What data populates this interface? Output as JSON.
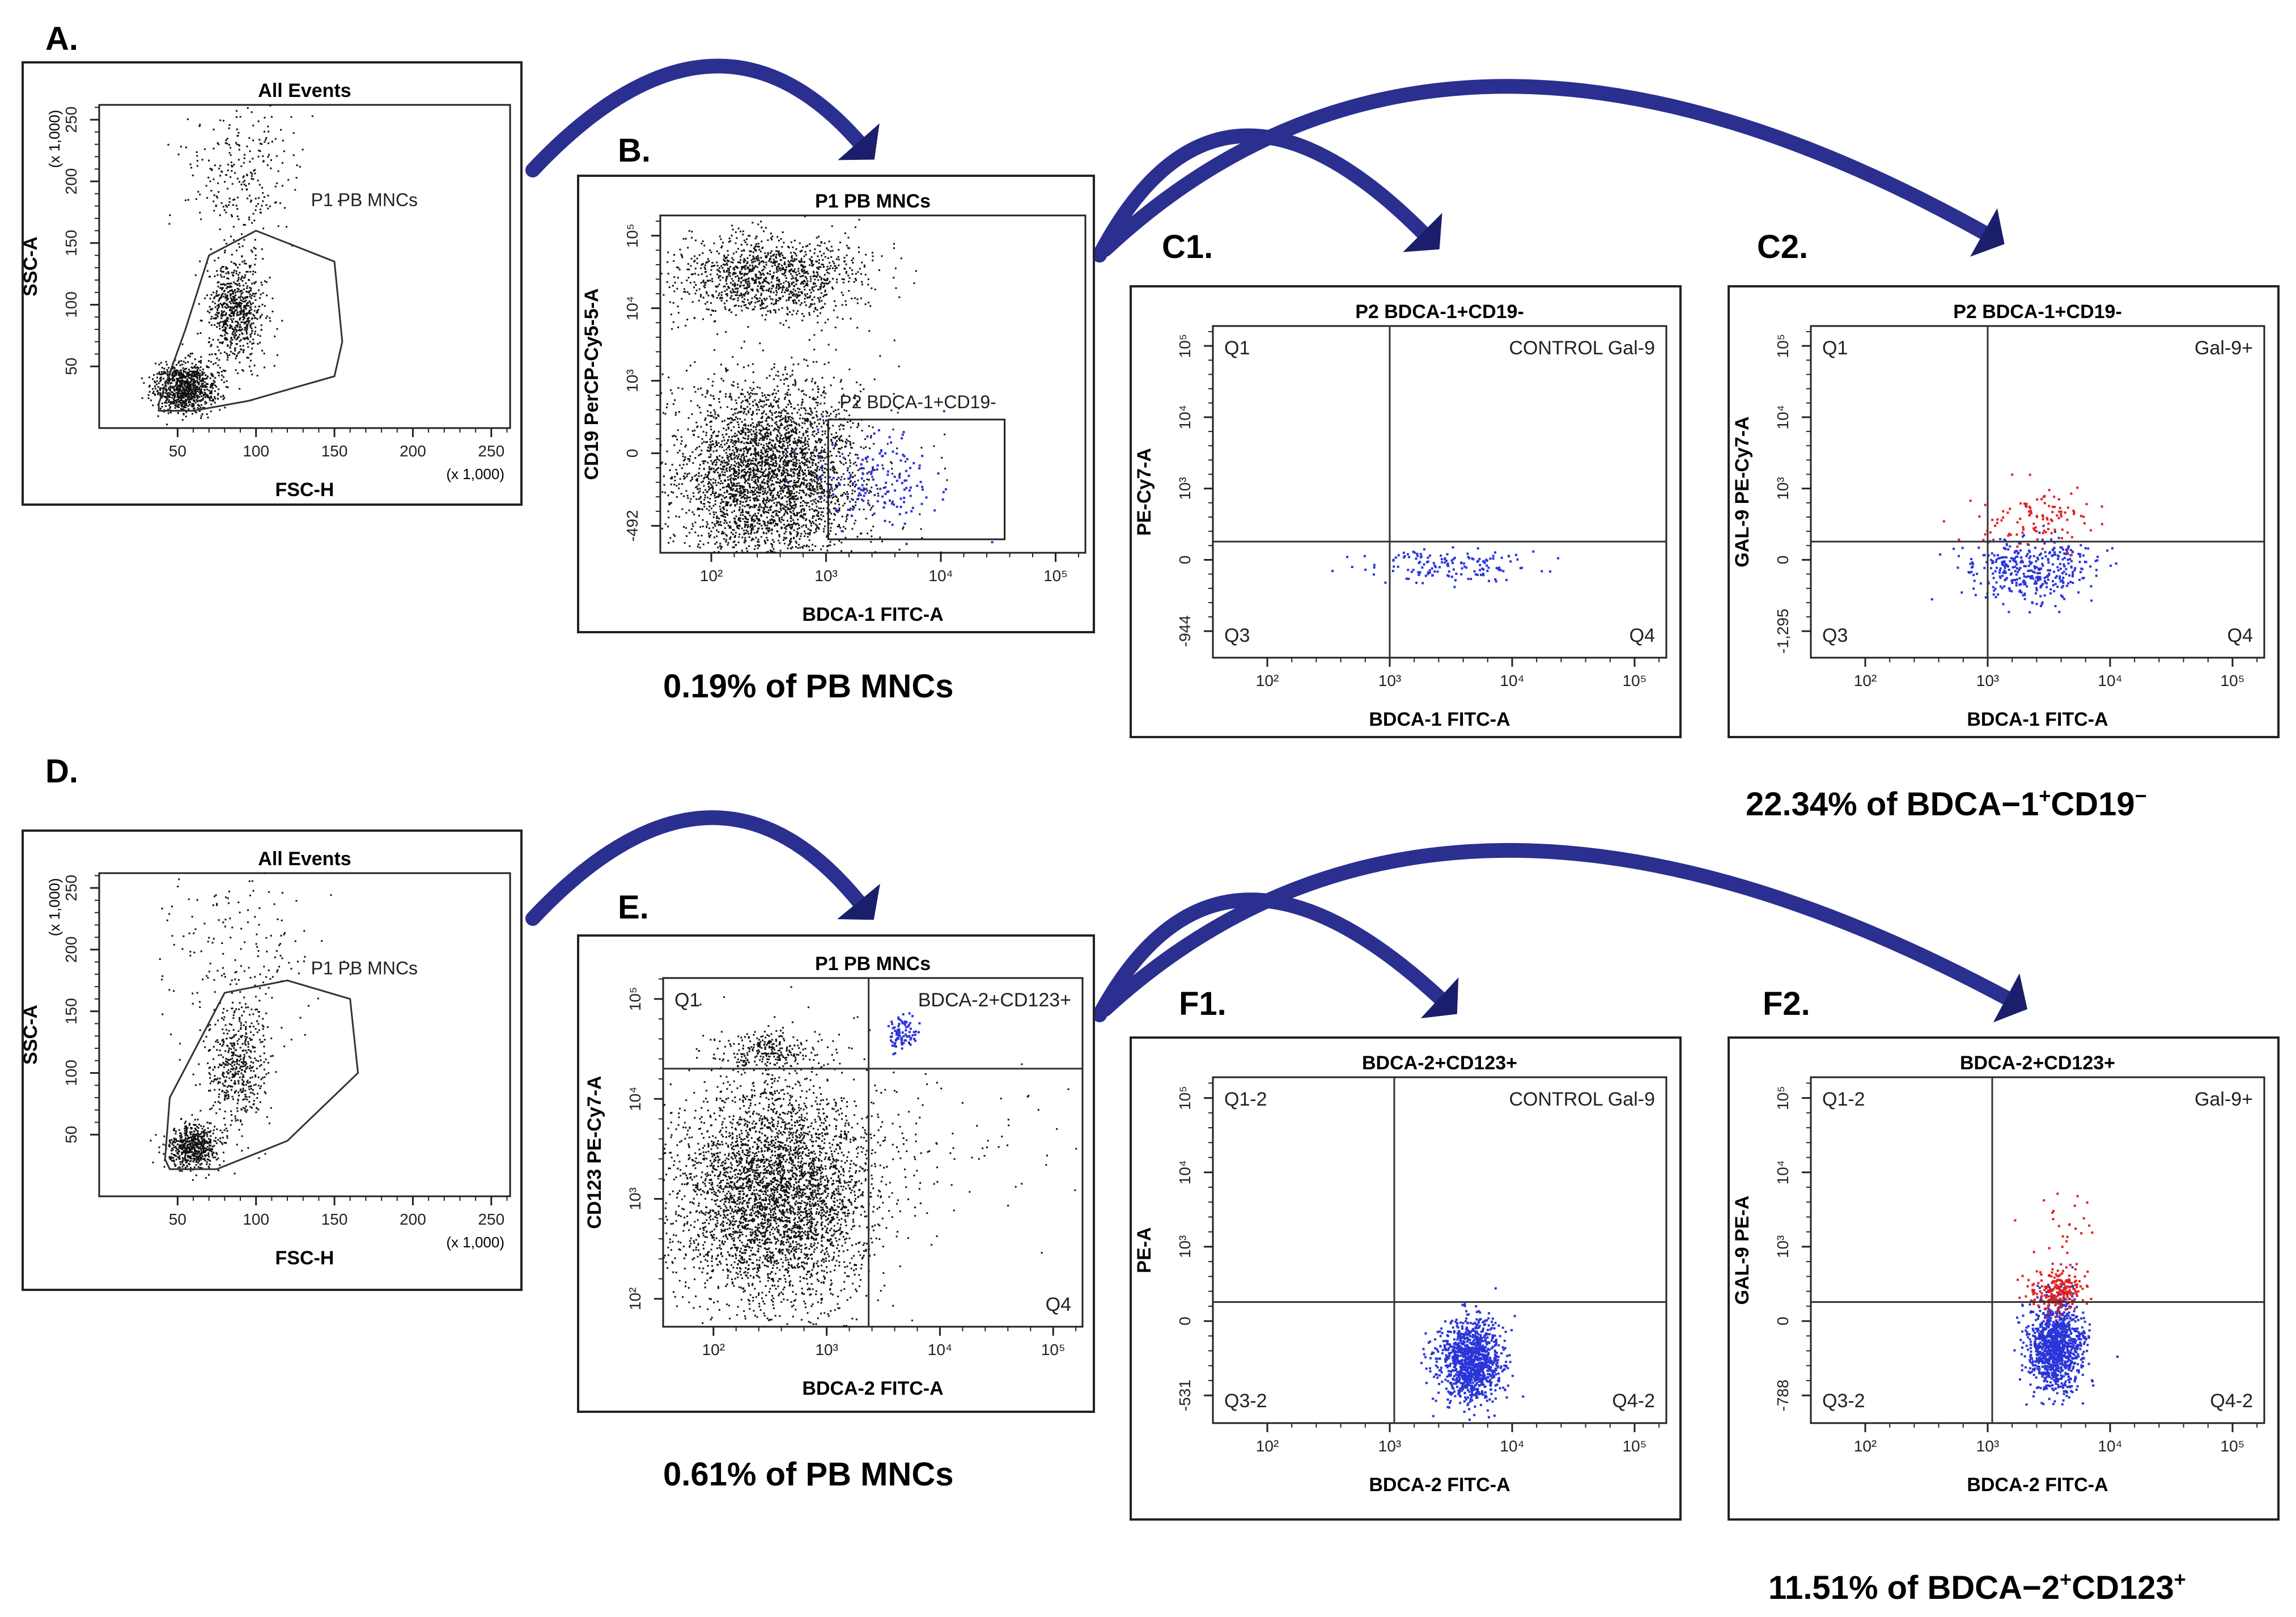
{
  "figure_labels": {
    "A": "A.",
    "B": "B.",
    "C1": "C1.",
    "C2": "C2.",
    "D": "D.",
    "E": "E.",
    "F1": "F1.",
    "F2": "F2."
  },
  "captions": {
    "B": "0.19% of PB MNCs",
    "E": "0.61% of PB MNCs",
    "C2": {
      "base": "22.34% of BDCA−1",
      "sup1": "+",
      "mid": "CD19",
      "sup2": "−"
    },
    "F2": {
      "base": "11.51% of BDCA−2",
      "sup1": "+",
      "mid": "CD123",
      "sup2": "+"
    }
  },
  "colors": {
    "black_events": "#111111",
    "blue_events": "#2a35d8",
    "red_events": "#e02020",
    "arrow": "#2b2f8f",
    "arrow_dark": "#1b1e6a"
  },
  "chart_data": [
    {
      "id": "A",
      "type": "scatter",
      "title": "All Events",
      "xlabel": "FSC-H",
      "ylabel": "SSC-A",
      "x_ticks": [
        "50",
        "100",
        "150",
        "200",
        "250"
      ],
      "y_ticks": [
        "50",
        "100",
        "150",
        "200",
        "250"
      ],
      "x_multiplier": "(x 1,000)",
      "y_multiplier": "(x 1,000)",
      "gate_label": "P1 PB MNCs",
      "xlim": [
        0,
        262
      ],
      "ylim": [
        0,
        262
      ],
      "gate_polygon": [
        [
          38,
          14
        ],
        [
          60,
          14
        ],
        [
          95,
          22
        ],
        [
          150,
          42
        ],
        [
          155,
          70
        ],
        [
          150,
          135
        ],
        [
          100,
          160
        ],
        [
          70,
          140
        ],
        [
          55,
          80
        ],
        [
          38,
          20
        ]
      ],
      "clusters": [
        {
          "color": "black",
          "n": 900,
          "cx": 55,
          "cy": 33,
          "sx": 10,
          "sy": 10
        },
        {
          "color": "black",
          "n": 700,
          "cx": 87,
          "cy": 95,
          "sx": 9,
          "sy": 22
        },
        {
          "color": "black",
          "n": 250,
          "cx": 90,
          "cy": 200,
          "sx": 18,
          "sy": 30
        }
      ]
    },
    {
      "id": "B",
      "type": "scatter",
      "title": "P1 PB MNCs",
      "xlabel": "BDCA-1 FITC-A",
      "ylabel": "CD19 PerCP-Cy5-5-A",
      "x_ticks": [
        "10²",
        "10³",
        "10⁴",
        "10⁵"
      ],
      "y_ticks": [
        "-492",
        "0",
        "10³",
        "10⁴",
        "10⁵"
      ],
      "gate_label": "P2 BDCA-1+CD19-",
      "xlim": [
        0,
        1
      ],
      "ylim": [
        0,
        1
      ],
      "gate_rect": [
        0.395,
        0.395,
        0.81,
        0.04
      ],
      "clusters": [
        {
          "color": "black",
          "n": 3500,
          "cx": 0.26,
          "cy": 0.23,
          "sx": 0.11,
          "sy": 0.14
        },
        {
          "color": "black",
          "n": 1200,
          "cx": 0.25,
          "cy": 0.82,
          "sx": 0.11,
          "sy": 0.06
        },
        {
          "color": "blue",
          "n": 150,
          "cx": 0.52,
          "cy": 0.22,
          "sx": 0.08,
          "sy": 0.07
        }
      ]
    },
    {
      "id": "C1",
      "type": "scatter",
      "title": "P2 BDCA-1+CD19-",
      "xlabel": "BDCA-1 FITC-A",
      "ylabel": "PE-Cy7-A",
      "x_ticks": [
        "10²",
        "10³",
        "10⁴",
        "10⁵"
      ],
      "y_ticks": [
        "-944",
        "0",
        "10³",
        "10⁴",
        "10⁵"
      ],
      "quadrants": [
        "Q1",
        "CONTROL Gal-9",
        "Q3",
        "Q4"
      ],
      "xlim": [
        0,
        1
      ],
      "ylim": [
        0,
        1
      ],
      "qx": 0.39,
      "qy": 0.35,
      "clusters": [
        {
          "color": "blue",
          "n": 150,
          "cx": 0.52,
          "cy": 0.28,
          "sx": 0.09,
          "sy": 0.025
        }
      ]
    },
    {
      "id": "C2",
      "type": "scatter",
      "title": "P2 BDCA-1+CD19-",
      "xlabel": "BDCA-1 FITC-A",
      "ylabel": "GAL-9 PE-Cy7-A",
      "x_ticks": [
        "10²",
        "10³",
        "10⁴",
        "10⁵"
      ],
      "y_ticks": [
        "-1,295",
        "0",
        "10³",
        "10⁴",
        "10⁵"
      ],
      "quadrants": [
        "Q1",
        "Gal-9+",
        "Q3",
        "Q4"
      ],
      "xlim": [
        0,
        1
      ],
      "ylim": [
        0,
        1
      ],
      "qx": 0.39,
      "qy": 0.35,
      "clusters": [
        {
          "color": "blue",
          "n": 380,
          "cx": 0.49,
          "cy": 0.27,
          "sx": 0.07,
          "sy": 0.05
        },
        {
          "color": "red",
          "n": 110,
          "cx": 0.5,
          "cy": 0.42,
          "sx": 0.07,
          "sy": 0.05
        }
      ]
    },
    {
      "id": "D",
      "type": "scatter",
      "title": "All Events",
      "xlabel": "FSC-H",
      "ylabel": "SSC-A",
      "x_ticks": [
        "50",
        "100",
        "150",
        "200",
        "250"
      ],
      "y_ticks": [
        "50",
        "100",
        "150",
        "200",
        "250"
      ],
      "x_multiplier": "(x 1,000)",
      "y_multiplier": "(x 1,000)",
      "gate_label": "P1 PB MNCs",
      "xlim": [
        0,
        262
      ],
      "ylim": [
        0,
        262
      ],
      "gate_polygon": [
        [
          45,
          22
        ],
        [
          75,
          22
        ],
        [
          120,
          45
        ],
        [
          165,
          100
        ],
        [
          160,
          160
        ],
        [
          120,
          175
        ],
        [
          80,
          165
        ],
        [
          45,
          80
        ],
        [
          42,
          30
        ]
      ],
      "clusters": [
        {
          "color": "black",
          "n": 600,
          "cx": 60,
          "cy": 40,
          "sx": 8,
          "sy": 9
        },
        {
          "color": "black",
          "n": 500,
          "cx": 88,
          "cy": 105,
          "sx": 10,
          "sy": 25
        },
        {
          "color": "black",
          "n": 180,
          "cx": 90,
          "cy": 200,
          "sx": 25,
          "sy": 35
        }
      ]
    },
    {
      "id": "E",
      "type": "scatter",
      "title": "P1 PB MNCs",
      "xlabel": "BDCA-2 FITC-A",
      "ylabel": "CD123 PE-Cy7-A",
      "x_ticks": [
        "10²",
        "10³",
        "10⁴",
        "10⁵"
      ],
      "y_ticks": [
        "10²",
        "10³",
        "10⁴",
        "10⁵"
      ],
      "quadrants": [
        "Q1",
        "BDCA-2+CD123+",
        "",
        "Q4"
      ],
      "xlim": [
        0,
        1
      ],
      "ylim": [
        0,
        1
      ],
      "qx": 0.49,
      "qy": 0.74,
      "clusters": [
        {
          "color": "black",
          "n": 4000,
          "cx": 0.27,
          "cy": 0.38,
          "sx": 0.12,
          "sy": 0.16
        },
        {
          "color": "black",
          "n": 250,
          "cx": 0.25,
          "cy": 0.79,
          "sx": 0.07,
          "sy": 0.03
        },
        {
          "color": "blue",
          "n": 90,
          "cx": 0.57,
          "cy": 0.84,
          "sx": 0.018,
          "sy": 0.025
        },
        {
          "color": "black",
          "n": 70,
          "cx": 0.7,
          "cy": 0.5,
          "sx": 0.15,
          "sy": 0.12
        }
      ]
    },
    {
      "id": "F1",
      "type": "scatter",
      "title": "BDCA-2+CD123+",
      "xlabel": "BDCA-2 FITC-A",
      "ylabel": "PE-A",
      "x_ticks": [
        "10²",
        "10³",
        "10⁴",
        "10⁵"
      ],
      "y_ticks": [
        "-531",
        "0",
        "10³",
        "10⁴",
        "10⁵"
      ],
      "quadrants": [
        "Q1-2",
        "CONTROL Gal-9",
        "Q3-2",
        "Q4-2"
      ],
      "xlim": [
        0,
        1
      ],
      "ylim": [
        0,
        1
      ],
      "qx": 0.4,
      "qy": 0.35,
      "clusters": [
        {
          "color": "blue",
          "n": 1100,
          "cx": 0.57,
          "cy": 0.18,
          "sx": 0.035,
          "sy": 0.06
        }
      ]
    },
    {
      "id": "F2",
      "type": "scatter",
      "title": "BDCA-2+CD123+",
      "xlabel": "BDCA-2 FITC-A",
      "ylabel": "GAL-9 PE-A",
      "x_ticks": [
        "10²",
        "10³",
        "10⁴",
        "10⁵"
      ],
      "y_ticks": [
        "-788",
        "0",
        "10³",
        "10⁴",
        "10⁵"
      ],
      "quadrants": [
        "Q1-2",
        "Gal-9+",
        "Q3-2",
        "Q4-2"
      ],
      "xlim": [
        0,
        1
      ],
      "ylim": [
        0,
        1
      ],
      "qx": 0.4,
      "qy": 0.35,
      "clusters": [
        {
          "color": "blue",
          "n": 1100,
          "cx": 0.54,
          "cy": 0.22,
          "sx": 0.03,
          "sy": 0.065
        },
        {
          "color": "red",
          "n": 220,
          "cx": 0.54,
          "cy": 0.38,
          "sx": 0.03,
          "sy": 0.03
        },
        {
          "color": "red",
          "n": 25,
          "cx": 0.55,
          "cy": 0.55,
          "sx": 0.04,
          "sy": 0.07
        }
      ]
    }
  ]
}
